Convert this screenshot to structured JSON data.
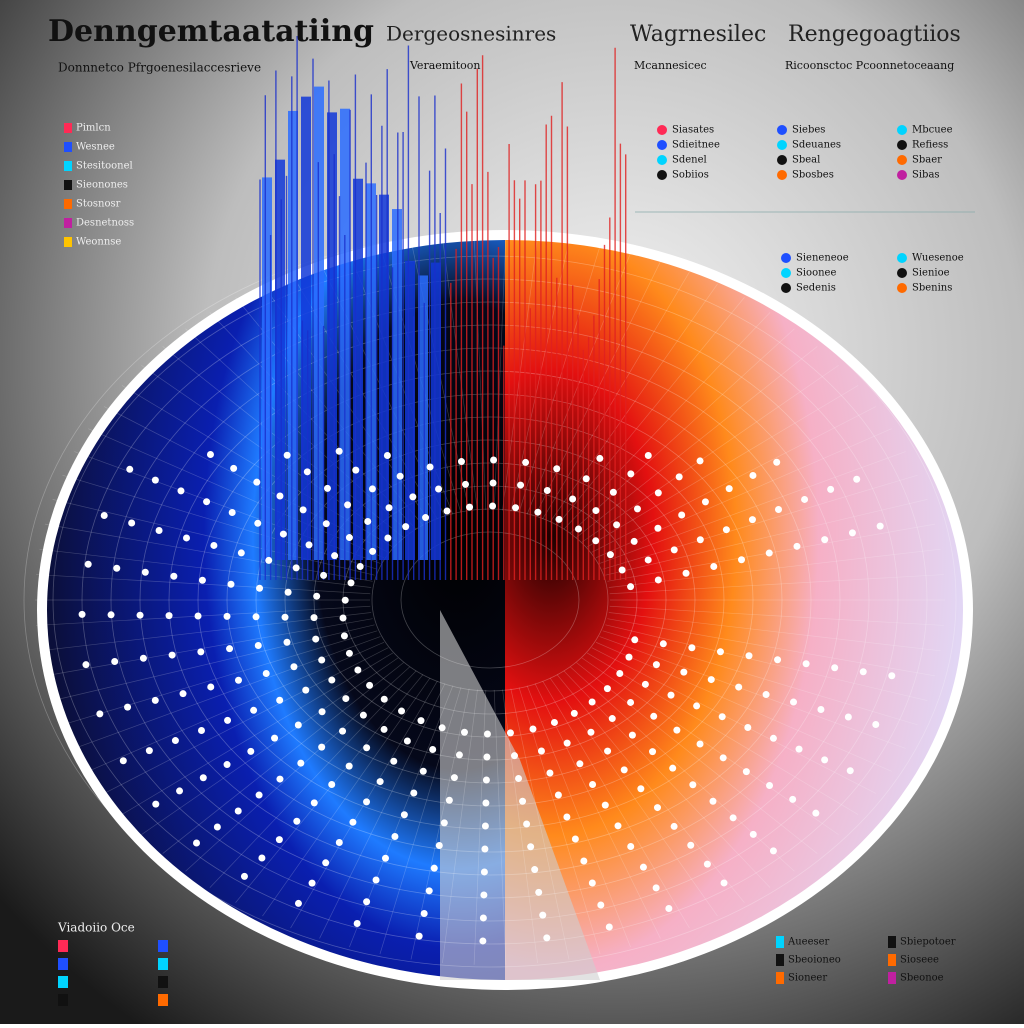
{
  "header": {
    "titles": [
      "Denngemtaatatiing",
      "Dergeosnesinres",
      "Wagrnesilec",
      "Rengegoagtiios"
    ],
    "subtitles": [
      "Donnnetco Pfrgoenesilaccesrieve",
      "Veraemitoon",
      "Mcannesicec",
      "Ricoonsctoc Pcoonnetoceaang"
    ]
  },
  "legends": {
    "left": [
      "Pimlcn",
      "Wesnee",
      "Stesitoonel",
      "Sieonones",
      "Stosnosr",
      "Desnetnoss",
      "Weonnse"
    ],
    "right_top": [
      [
        "Siasates",
        "Sdieitnee",
        "Sdenel",
        "Sobiios"
      ],
      [
        "Siebes",
        "Sdeuanes",
        "Sbeal",
        "Sbosbes"
      ],
      [
        "Mbcuee",
        "Refiess",
        "Sbaer",
        "Sibas"
      ]
    ],
    "right_mid": [
      [
        "Sieneneoe",
        "Sioonee",
        "Sedenis"
      ],
      [
        "Wuesenoe",
        "Sienioe",
        "Sbenins"
      ]
    ],
    "bottom_left_title": "Viadoiio Oce",
    "bottom_right": [
      [
        "Aueeser",
        "Sbeoioneo",
        "Sioneer"
      ],
      [
        "Sbiepotoer",
        "Sioseee",
        "Sbeonoe"
      ]
    ]
  }
}
